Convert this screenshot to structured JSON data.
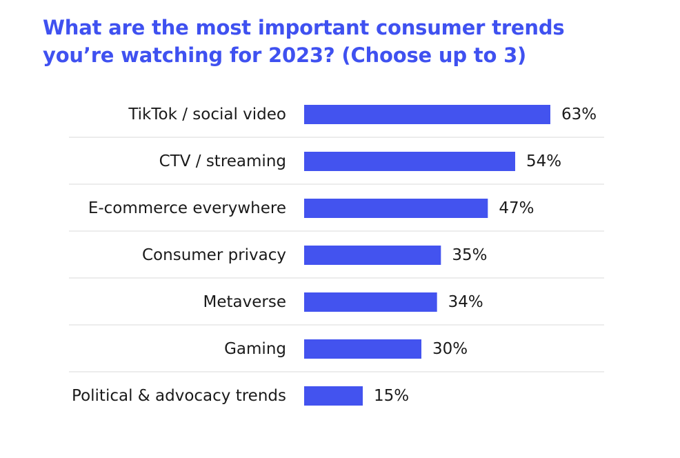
{
  "header": {
    "title_line1": "What are the most important consumer trends",
    "title_line2": "you’re watching for 2023? (Choose up to 3)"
  },
  "colors": {
    "bar": "#4353ef",
    "title": "#3f51f0",
    "gridline": "#e6e6e6",
    "text": "#1a1a1a"
  },
  "chart_data": {
    "type": "bar",
    "orientation": "horizontal",
    "title": "What are the most important consumer trends you’re watching for 2023? (Choose up to 3)",
    "categories": [
      "TikTok / social video",
      "CTV / streaming",
      "E-commerce everywhere",
      "Consumer privacy",
      "Metaverse",
      "Gaming",
      "Political & advocacy trends"
    ],
    "values": [
      63,
      54,
      47,
      35,
      34,
      30,
      15
    ],
    "value_labels": [
      "63%",
      "54%",
      "47%",
      "35%",
      "34%",
      "30%",
      "15%"
    ],
    "unit": "%",
    "xlim": [
      0,
      63
    ],
    "xlabel": "",
    "ylabel": "",
    "grid": true,
    "legend": "none"
  }
}
